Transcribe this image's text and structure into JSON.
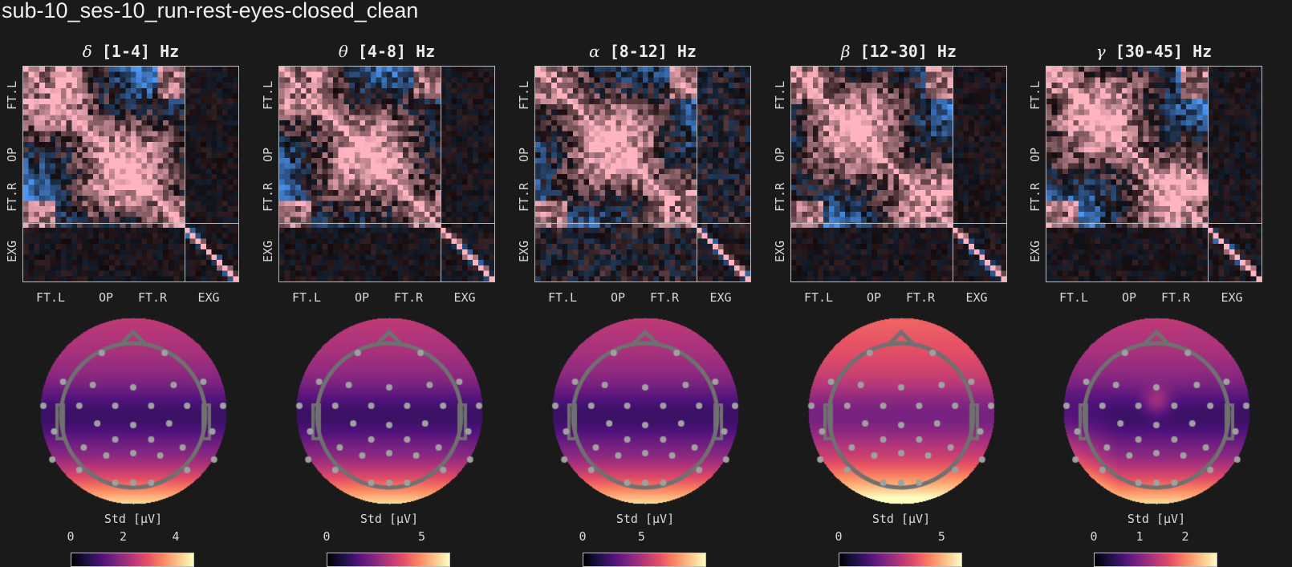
{
  "suptitle": "sub-10_ses-10_run-rest-eyes-closed_clean",
  "axis_groups": {
    "y": [
      "FT.L",
      "OP",
      "FT.R",
      "EXG"
    ],
    "x": [
      "FT.L",
      "OP",
      "FT.R",
      "EXG"
    ]
  },
  "colorbar_label": "Std [μV]",
  "bands": [
    {
      "greek": "δ",
      "range": "[1-4] Hz",
      "ticks": [
        "0",
        "2",
        "4"
      ],
      "vmax": 4.7,
      "tickvals": [
        0,
        2,
        4
      ]
    },
    {
      "greek": "θ",
      "range": "[4-8] Hz",
      "ticks": [
        "0",
        "5"
      ],
      "vmax": 6.5,
      "tickvals": [
        0,
        5
      ]
    },
    {
      "greek": "α",
      "range": "[8-12] Hz",
      "ticks": [
        "0",
        "5"
      ],
      "vmax": 10.5,
      "tickvals": [
        0,
        5
      ]
    },
    {
      "greek": "β",
      "range": "[12-30] Hz",
      "ticks": [
        "0",
        "5"
      ],
      "vmax": 6.0,
      "tickvals": [
        0,
        5
      ]
    },
    {
      "greek": "γ",
      "range": "[30-45] Hz",
      "ticks": [
        "0",
        "1",
        "2"
      ],
      "vmax": 2.7,
      "tickvals": [
        0,
        1,
        2
      ]
    }
  ],
  "chart_data": [
    {
      "type": "heatmap",
      "title": "Channel correlation matrices per frequency band",
      "panels": [
        "δ [1-4] Hz",
        "θ [4-8] Hz",
        "α [8-12] Hz",
        "β [12-30] Hz",
        "γ [30-45] Hz"
      ],
      "x_tick_labels": [
        "FT.L",
        "OP",
        "FT.R",
        "EXG"
      ],
      "y_tick_labels": [
        "FT.L",
        "OP",
        "FT.R",
        "EXG"
      ],
      "matrix_size": 40,
      "eeg_channels": 30,
      "exg_channels": 10,
      "colormap": "diverging blue-black-pink",
      "value_range": [
        -1,
        1
      ]
    },
    {
      "type": "heatmap",
      "title": "Scalp topographies of per-channel standard deviation",
      "panels": [
        "δ [1-4] Hz",
        "θ [4-8] Hz",
        "α [8-12] Hz",
        "β [12-30] Hz",
        "γ [30-45] Hz"
      ],
      "colorbar_label": "Std [μV]",
      "colormap": "magma",
      "colorbar_ticks": [
        [
          0,
          2,
          4
        ],
        [
          0,
          5
        ],
        [
          0,
          5
        ],
        [
          0,
          5
        ],
        [
          0,
          1,
          2
        ]
      ],
      "colorbar_ranges": [
        [
          0,
          4.7
        ],
        [
          0,
          6.5
        ],
        [
          0,
          10.5
        ],
        [
          0,
          6.0
        ],
        [
          0,
          2.7
        ]
      ]
    }
  ]
}
